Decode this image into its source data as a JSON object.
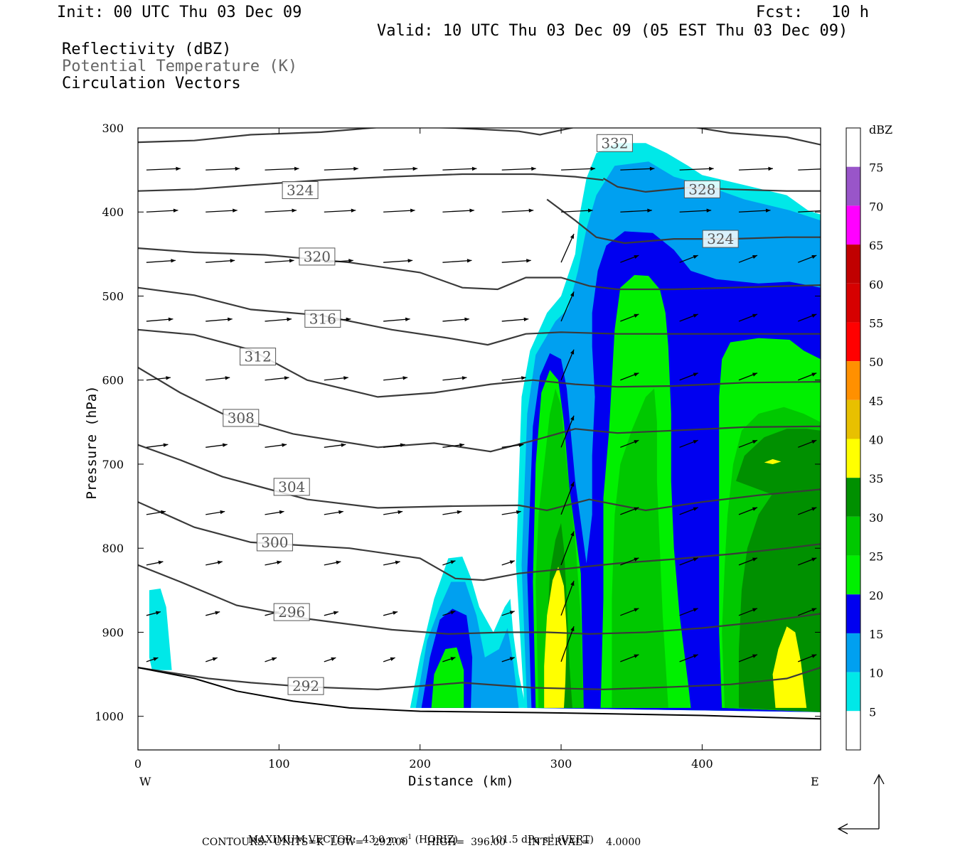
{
  "header": {
    "init": "Init: 00 UTC Thu 03 Dec 09",
    "fcst": "Fcst:   10 h",
    "valid": "Valid: 10 UTC Thu 03 Dec 09 (05 EST Thu 03 Dec 09)",
    "field1": "Reflectivity (dBZ)",
    "field2": "Potential Temperature (K)",
    "field3": "Circulation Vectors"
  },
  "footer": {
    "max_vector_label": "MAXIMUM VECTOR:",
    "max_horiz": "43.0 m s",
    "horiz_tag": "(HORIZ)",
    "max_vert": "101.5 dPa s",
    "vert_tag": "(VERT)",
    "exp": "-1",
    "contours": "CONTOURS:  UNITS=K  LOW=   292.00      HIGH=  396.00       INTERVAL=     4.0000"
  },
  "chart_data": {
    "type": "contour",
    "xlabel": "Distance (km)",
    "ylabel": "Pressure (hPa)",
    "xlim": [
      0,
      484
    ],
    "ylim": [
      1040,
      300
    ],
    "xticks": [
      0,
      100,
      200,
      300,
      400
    ],
    "yticks": [
      300,
      400,
      500,
      600,
      700,
      800,
      900,
      1000
    ],
    "x_left_label": "W",
    "x_right_label": "E",
    "colorbar": {
      "title": "dBZ",
      "levels": [
        5,
        10,
        15,
        20,
        25,
        30,
        35,
        40,
        45,
        50,
        55,
        60,
        65,
        70,
        75
      ],
      "colors": [
        "#00e8e8",
        "#00a0f0",
        "#0000f0",
        "#00f000",
        "#00c800",
        "#009000",
        "#ffff00",
        "#e8c000",
        "#ff9000",
        "#ff0000",
        "#d60000",
        "#c00000",
        "#ff00ff",
        "#9955c9"
      ],
      "top_color": "#ffffff"
    },
    "theta_contours": [
      {
        "label": "332",
        "label_pos": [
          338,
          318
        ],
        "points": [
          [
            0,
            317
          ],
          [
            40,
            315
          ],
          [
            80,
            308
          ],
          [
            130,
            305
          ],
          [
            180,
            298
          ],
          [
            225,
            300
          ],
          [
            270,
            304
          ],
          [
            285,
            308
          ],
          [
            310,
            299
          ],
          [
            324,
            295
          ],
          [
            350,
            295
          ],
          [
            390,
            298
          ],
          [
            420,
            306
          ],
          [
            460,
            311
          ],
          [
            484,
            320
          ]
        ]
      },
      {
        "label": "328",
        "label_pos": [
          400,
          373
        ],
        "points": [
          [
            330,
            360
          ],
          [
            340,
            370
          ],
          [
            360,
            376
          ],
          [
            390,
            371
          ],
          [
            420,
            373
          ],
          [
            460,
            375
          ],
          [
            484,
            375
          ]
        ]
      },
      {
        "label": "324",
        "label_pos": [
          115,
          374
        ],
        "points": [
          [
            0,
            375
          ],
          [
            40,
            373
          ],
          [
            80,
            368
          ],
          [
            130,
            362
          ],
          [
            180,
            358
          ],
          [
            230,
            355
          ],
          [
            280,
            355
          ],
          [
            310,
            358
          ],
          [
            330,
            362
          ]
        ]
      },
      {
        "label": "324",
        "label_pos": [
          413,
          432
        ],
        "points": [
          [
            290,
            385
          ],
          [
            310,
            410
          ],
          [
            325,
            430
          ],
          [
            345,
            437
          ],
          [
            380,
            432
          ],
          [
            420,
            432
          ],
          [
            460,
            430
          ],
          [
            484,
            430
          ]
        ]
      },
      {
        "label": "320",
        "label_pos": [
          127,
          453
        ],
        "points": [
          [
            0,
            443
          ],
          [
            40,
            448
          ],
          [
            90,
            451
          ],
          [
            150,
            460
          ],
          [
            200,
            472
          ],
          [
            230,
            490
          ],
          [
            255,
            492
          ],
          [
            275,
            478
          ],
          [
            300,
            478
          ],
          [
            320,
            488
          ],
          [
            340,
            492
          ],
          [
            380,
            492
          ],
          [
            420,
            490
          ],
          [
            484,
            487
          ]
        ]
      },
      {
        "label": "316",
        "label_pos": [
          131,
          527
        ],
        "points": [
          [
            0,
            490
          ],
          [
            40,
            499
          ],
          [
            80,
            516
          ],
          [
            130,
            523
          ],
          [
            180,
            540
          ],
          [
            220,
            550
          ],
          [
            248,
            558
          ],
          [
            275,
            545
          ],
          [
            300,
            543
          ],
          [
            340,
            545
          ],
          [
            380,
            545
          ],
          [
            420,
            545
          ],
          [
            484,
            545
          ]
        ]
      },
      {
        "label": "312",
        "label_pos": [
          85,
          572
        ],
        "points": [
          [
            0,
            540
          ],
          [
            40,
            546
          ],
          [
            80,
            564
          ],
          [
            120,
            600
          ],
          [
            170,
            620
          ],
          [
            210,
            615
          ],
          [
            250,
            605
          ],
          [
            280,
            600
          ],
          [
            310,
            605
          ],
          [
            340,
            608
          ],
          [
            380,
            607
          ],
          [
            430,
            603
          ],
          [
            484,
            602
          ]
        ]
      },
      {
        "label": "308",
        "label_pos": [
          73,
          645
        ],
        "points": [
          [
            0,
            585
          ],
          [
            30,
            615
          ],
          [
            60,
            640
          ],
          [
            110,
            664
          ],
          [
            170,
            680
          ],
          [
            210,
            675
          ],
          [
            250,
            685
          ],
          [
            280,
            672
          ],
          [
            310,
            658
          ],
          [
            340,
            663
          ],
          [
            380,
            660
          ],
          [
            430,
            656
          ],
          [
            484,
            655
          ]
        ]
      },
      {
        "label": "304",
        "label_pos": [
          109,
          727
        ],
        "points": [
          [
            0,
            677
          ],
          [
            30,
            695
          ],
          [
            60,
            715
          ],
          [
            120,
            742
          ],
          [
            170,
            752
          ],
          [
            220,
            750
          ],
          [
            270,
            749
          ],
          [
            290,
            755
          ],
          [
            320,
            742
          ],
          [
            360,
            755
          ],
          [
            400,
            745
          ],
          [
            440,
            737
          ],
          [
            484,
            730
          ]
        ]
      },
      {
        "label": "300",
        "label_pos": [
          97,
          793
        ],
        "points": [
          [
            0,
            745
          ],
          [
            40,
            775
          ],
          [
            80,
            793
          ],
          [
            150,
            800
          ],
          [
            200,
            812
          ],
          [
            225,
            836
          ],
          [
            245,
            838
          ],
          [
            270,
            830
          ],
          [
            300,
            825
          ],
          [
            340,
            818
          ],
          [
            380,
            813
          ],
          [
            420,
            807
          ],
          [
            460,
            800
          ],
          [
            484,
            795
          ]
        ]
      },
      {
        "label": "296",
        "label_pos": [
          109,
          876
        ],
        "points": [
          [
            0,
            820
          ],
          [
            30,
            840
          ],
          [
            70,
            868
          ],
          [
            120,
            884
          ],
          [
            180,
            897
          ],
          [
            220,
            902
          ],
          [
            260,
            900
          ],
          [
            290,
            900
          ],
          [
            320,
            902
          ],
          [
            360,
            900
          ],
          [
            400,
            895
          ],
          [
            440,
            888
          ],
          [
            484,
            878
          ]
        ]
      },
      {
        "label": "292",
        "label_pos": [
          119,
          964
        ],
        "points": [
          [
            0,
            942
          ],
          [
            50,
            955
          ],
          [
            80,
            960
          ],
          [
            120,
            965
          ],
          [
            170,
            968
          ],
          [
            230,
            960
          ],
          [
            280,
            966
          ],
          [
            330,
            968
          ],
          [
            380,
            965
          ],
          [
            420,
            962
          ],
          [
            460,
            955
          ],
          [
            484,
            942
          ]
        ]
      }
    ],
    "surface": [
      [
        0,
        942
      ],
      [
        40,
        955
      ],
      [
        70,
        970
      ],
      [
        110,
        982
      ],
      [
        150,
        990
      ],
      [
        200,
        994
      ],
      [
        300,
        996
      ],
      [
        400,
        999
      ],
      [
        484,
        1003
      ]
    ]
  }
}
